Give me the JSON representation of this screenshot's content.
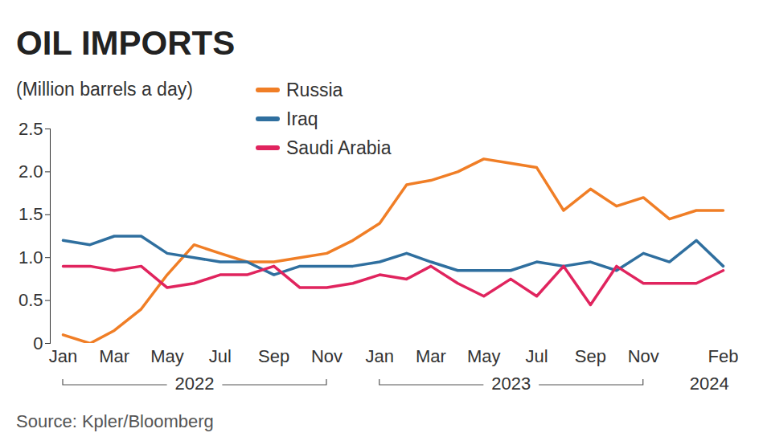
{
  "chart_data": {
    "type": "line",
    "title": "OIL IMPORTS",
    "subtitle": "(Million barrels a day)",
    "source": "Source: Kpler/Bloomberg",
    "x": [
      "2022-01",
      "2022-02",
      "2022-03",
      "2022-04",
      "2022-05",
      "2022-06",
      "2022-07",
      "2022-08",
      "2022-09",
      "2022-10",
      "2022-11",
      "2022-12",
      "2023-01",
      "2023-02",
      "2023-03",
      "2023-04",
      "2023-05",
      "2023-06",
      "2023-07",
      "2023-08",
      "2023-09",
      "2023-10",
      "2023-11",
      "2023-12",
      "2024-01",
      "2024-02"
    ],
    "series": [
      {
        "name": "Russia",
        "color": "#f07e26",
        "values": [
          0.1,
          0.0,
          0.15,
          0.4,
          0.8,
          1.15,
          1.05,
          0.95,
          0.95,
          1.0,
          1.05,
          1.2,
          1.4,
          1.85,
          1.9,
          2.0,
          2.15,
          2.1,
          2.05,
          1.55,
          1.8,
          1.6,
          1.7,
          1.45,
          1.55,
          1.55
        ]
      },
      {
        "name": "Iraq",
        "color": "#2f6f9f",
        "values": [
          1.2,
          1.15,
          1.25,
          1.25,
          1.05,
          1.0,
          0.95,
          0.95,
          0.8,
          0.9,
          0.9,
          0.9,
          0.95,
          1.05,
          0.95,
          0.85,
          0.85,
          0.85,
          0.95,
          0.9,
          0.95,
          0.85,
          1.05,
          0.95,
          1.2,
          0.9
        ]
      },
      {
        "name": "Saudi Arabia",
        "color": "#e0245e",
        "values": [
          0.9,
          0.9,
          0.85,
          0.9,
          0.65,
          0.7,
          0.8,
          0.8,
          0.9,
          0.65,
          0.65,
          0.7,
          0.8,
          0.75,
          0.9,
          0.7,
          0.55,
          0.75,
          0.55,
          0.9,
          0.45,
          0.9,
          0.7,
          0.7,
          0.7,
          0.85
        ]
      }
    ],
    "xticks": [
      {
        "value": "2022-01",
        "label": "Jan"
      },
      {
        "value": "2022-03",
        "label": "Mar"
      },
      {
        "value": "2022-05",
        "label": "May"
      },
      {
        "value": "2022-07",
        "label": "Jul"
      },
      {
        "value": "2022-09",
        "label": "Sep"
      },
      {
        "value": "2022-11",
        "label": "Nov"
      },
      {
        "value": "2023-01",
        "label": "Jan"
      },
      {
        "value": "2023-03",
        "label": "Mar"
      },
      {
        "value": "2023-05",
        "label": "May"
      },
      {
        "value": "2023-07",
        "label": "Jul"
      },
      {
        "value": "2023-09",
        "label": "Sep"
      },
      {
        "value": "2023-11",
        "label": "Nov"
      },
      {
        "value": "2024-02",
        "label": "Feb"
      }
    ],
    "year_groups": [
      {
        "label": "2022",
        "start": "2022-01",
        "end": "2022-11"
      },
      {
        "label": "2023",
        "start": "2023-01",
        "end": "2023-11"
      },
      {
        "label": "2024",
        "start": "2024-01",
        "end": "2024-02"
      }
    ],
    "ylim": [
      0,
      2.5
    ],
    "yticks": [
      0,
      0.5,
      {
        "value": 1,
        "label": "1.0"
      },
      1.5,
      {
        "value": 2,
        "label": "2.0"
      },
      2.5
    ],
    "legend": "top",
    "grid": false
  }
}
